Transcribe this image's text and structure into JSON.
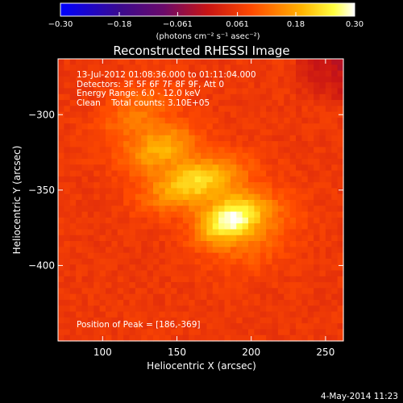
{
  "chart_data": {
    "type": "heatmap",
    "title": "Reconstructed RHESSI Image",
    "xlabel": "Heliocentric X (arcsec)",
    "ylabel": "Heliocentric Y (arcsec)",
    "xlim": [
      70,
      262
    ],
    "ylim": [
      -450,
      -263
    ],
    "x_ticks": [
      100,
      150,
      200,
      250
    ],
    "y_ticks": [
      -300,
      -350,
      -400
    ],
    "x_tick_labels": [
      "100",
      "150",
      "200",
      "250"
    ],
    "y_tick_labels": [
      "−300",
      "−350",
      "−400"
    ],
    "colorbar": {
      "range": [
        -0.3,
        0.3
      ],
      "ticks": [
        -0.3,
        -0.18,
        -0.061,
        0.061,
        0.18,
        0.3
      ],
      "tick_labels": [
        "−0.30",
        "−0.18",
        "−0.061",
        "0.061",
        "0.18",
        "0.30"
      ],
      "unit_label": "(photons cm⁻² s⁻¹ asec⁻²)",
      "colormap": "blue-purple-red-yellow-white"
    },
    "peak": [
      186,
      -369
    ],
    "background_level": 0.06,
    "sources": [
      {
        "x": 186,
        "y": -369,
        "amp": 0.22,
        "sx": 14,
        "sy": 10
      },
      {
        "x": 162,
        "y": -345,
        "amp": 0.17,
        "sx": 20,
        "sy": 11
      },
      {
        "x": 140,
        "y": -322,
        "amp": 0.12,
        "sx": 15,
        "sy": 10
      },
      {
        "x": 122,
        "y": -300,
        "amp": 0.07,
        "sx": 16,
        "sy": 14
      },
      {
        "x": 205,
        "y": -380,
        "amp": 0.06,
        "sx": 18,
        "sy": 16
      }
    ],
    "annotations": [
      "13-Jul-2012 01:08:36.000 to 01:11:04.000",
      "Detectors: 3F 5F 6F 7F 8F 9F, Att 0",
      "Energy Range: 6.0 - 12.0 keV",
      "Clean    Total counts: 3.10E+05"
    ],
    "peak_label": "Position of Peak = [186,-369]"
  },
  "footer": {
    "date": "4-May-2014 11:23"
  }
}
